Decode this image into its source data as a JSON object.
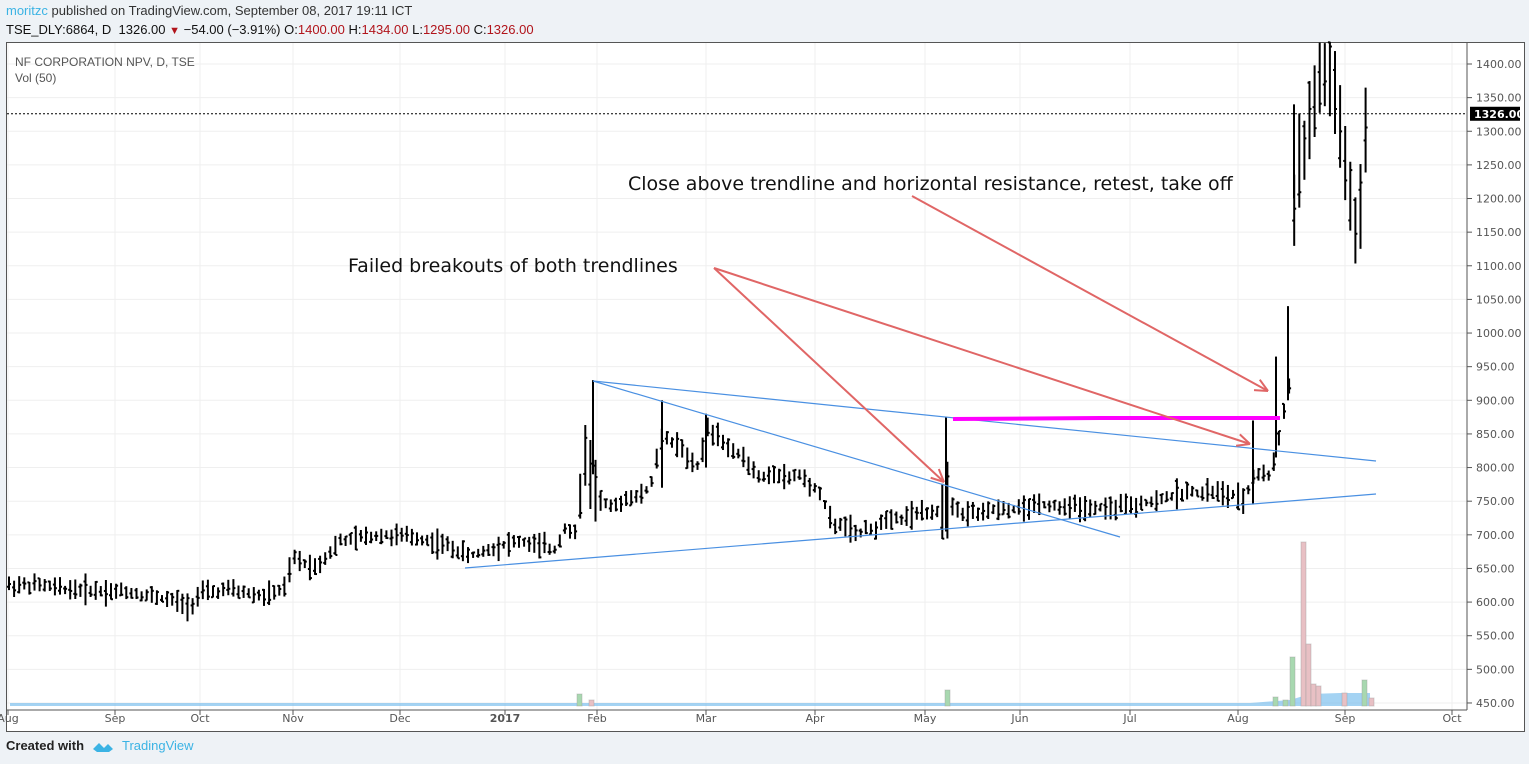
{
  "header": {
    "author": "moritzc",
    "published_text": "published on TradingView.com, September 08, 2017 19:11 ICT",
    "symbol_line": "TSE_DLY:6864, D",
    "last_price": "1326.00",
    "change_arrow": "▼",
    "change_text": "−54.00 (−3.91%)",
    "ohlc": {
      "o_label": "O:",
      "o": "1400.00",
      "h_label": "H:",
      "h": "1434.00",
      "l_label": "L:",
      "l": "1295.00",
      "c_label": "C:",
      "c": "1326.00"
    }
  },
  "legend": {
    "title": "NF CORPORATION NPV, D, TSE",
    "indicator": "Vol (50)"
  },
  "footer": {
    "created_with": "Created with",
    "brand": "TradingView"
  },
  "colors": {
    "bars": "#000000",
    "trendline": "#4a90e2",
    "resistance": "#ff00ff",
    "arrow": "#e06666",
    "vol_up": "#a8d8b0",
    "vol_down": "#e8c0c4",
    "vol_ma": "#7ec0ee",
    "price_tag_bg": "#000000",
    "accent": "#3bb3e4",
    "down": "#b1141b"
  },
  "chart_data": {
    "type": "ohlc",
    "title": "NF CORPORATION NPV, D, TSE",
    "symbol": "TSE_DLY:6864",
    "interval": "D",
    "current_price": 1326.0,
    "ylim": [
      450,
      1420
    ],
    "y_ticks": [
      450,
      500,
      550,
      600,
      650,
      700,
      750,
      800,
      850,
      900,
      950,
      1000,
      1050,
      1100,
      1150,
      1200,
      1250,
      1300,
      1350,
      1400
    ],
    "x_ticks": [
      "Aug",
      "Sep",
      "Oct",
      "Nov",
      "Dec",
      "2017",
      "Feb",
      "Mar",
      "Apr",
      "May",
      "Jun",
      "Jul",
      "Aug",
      "Sep",
      "Oct"
    ],
    "grid": true,
    "approx_monthly_path": [
      {
        "month": "Aug 2016",
        "low": 610,
        "high": 640,
        "close": 620
      },
      {
        "month": "Sep 2016",
        "low": 580,
        "high": 625,
        "close": 600
      },
      {
        "month": "Oct 2016",
        "low": 600,
        "high": 640,
        "close": 615
      },
      {
        "month": "Nov 2016",
        "low": 615,
        "high": 705,
        "close": 700
      },
      {
        "month": "Dec 2016",
        "low": 650,
        "high": 710,
        "close": 670
      },
      {
        "month": "Jan 2017",
        "low": 660,
        "high": 930,
        "close": 800
      },
      {
        "month": "Feb 2017",
        "low": 730,
        "high": 900,
        "close": 850
      },
      {
        "month": "Mar 2017",
        "low": 760,
        "high": 880,
        "close": 780
      },
      {
        "month": "Apr 2017",
        "low": 670,
        "high": 790,
        "close": 720
      },
      {
        "month": "May 2017",
        "low": 705,
        "high": 875,
        "close": 745
      },
      {
        "month": "Jun 2017",
        "low": 720,
        "high": 765,
        "close": 740
      },
      {
        "month": "Jul 2017",
        "low": 730,
        "high": 800,
        "close": 760
      },
      {
        "month": "Aug 2017",
        "low": 745,
        "high": 1430,
        "close": 1380
      },
      {
        "month": "Sep 2017",
        "low": 1105,
        "high": 1434,
        "close": 1326
      }
    ],
    "drawings": {
      "trendlines": [
        {
          "name": "upper-descending",
          "from": {
            "date": "2017-01-27",
            "price": 930
          },
          "to": {
            "date": "2017-09-08",
            "price": 808
          }
        },
        {
          "name": "steep-descending",
          "from": {
            "date": "2017-01-27",
            "price": 930
          },
          "to": {
            "date": "2017-06-30",
            "price": 695
          }
        },
        {
          "name": "rising-support",
          "from": {
            "date": "2016-12-20",
            "price": 648
          },
          "to": {
            "date": "2017-09-08",
            "price": 760
          }
        }
      ],
      "horizontal_resistance": {
        "price": 872,
        "from": "2017-05-10",
        "to": "2017-08-20"
      },
      "annotations": [
        {
          "text": "Failed breakouts of both trendlines",
          "arrows_to": [
            "2017-05-10 @ 770",
            "2017-08-07 @ 845"
          ]
        },
        {
          "text": "Close above trendline and horizontal resistance, retest, take off",
          "arrows_to": [
            "2017-08-15 @ 925"
          ]
        }
      ]
    },
    "volume": {
      "indicator": "Vol (50)",
      "notable_spike": {
        "date": "2017-08-18",
        "relative_height": "max"
      }
    }
  }
}
